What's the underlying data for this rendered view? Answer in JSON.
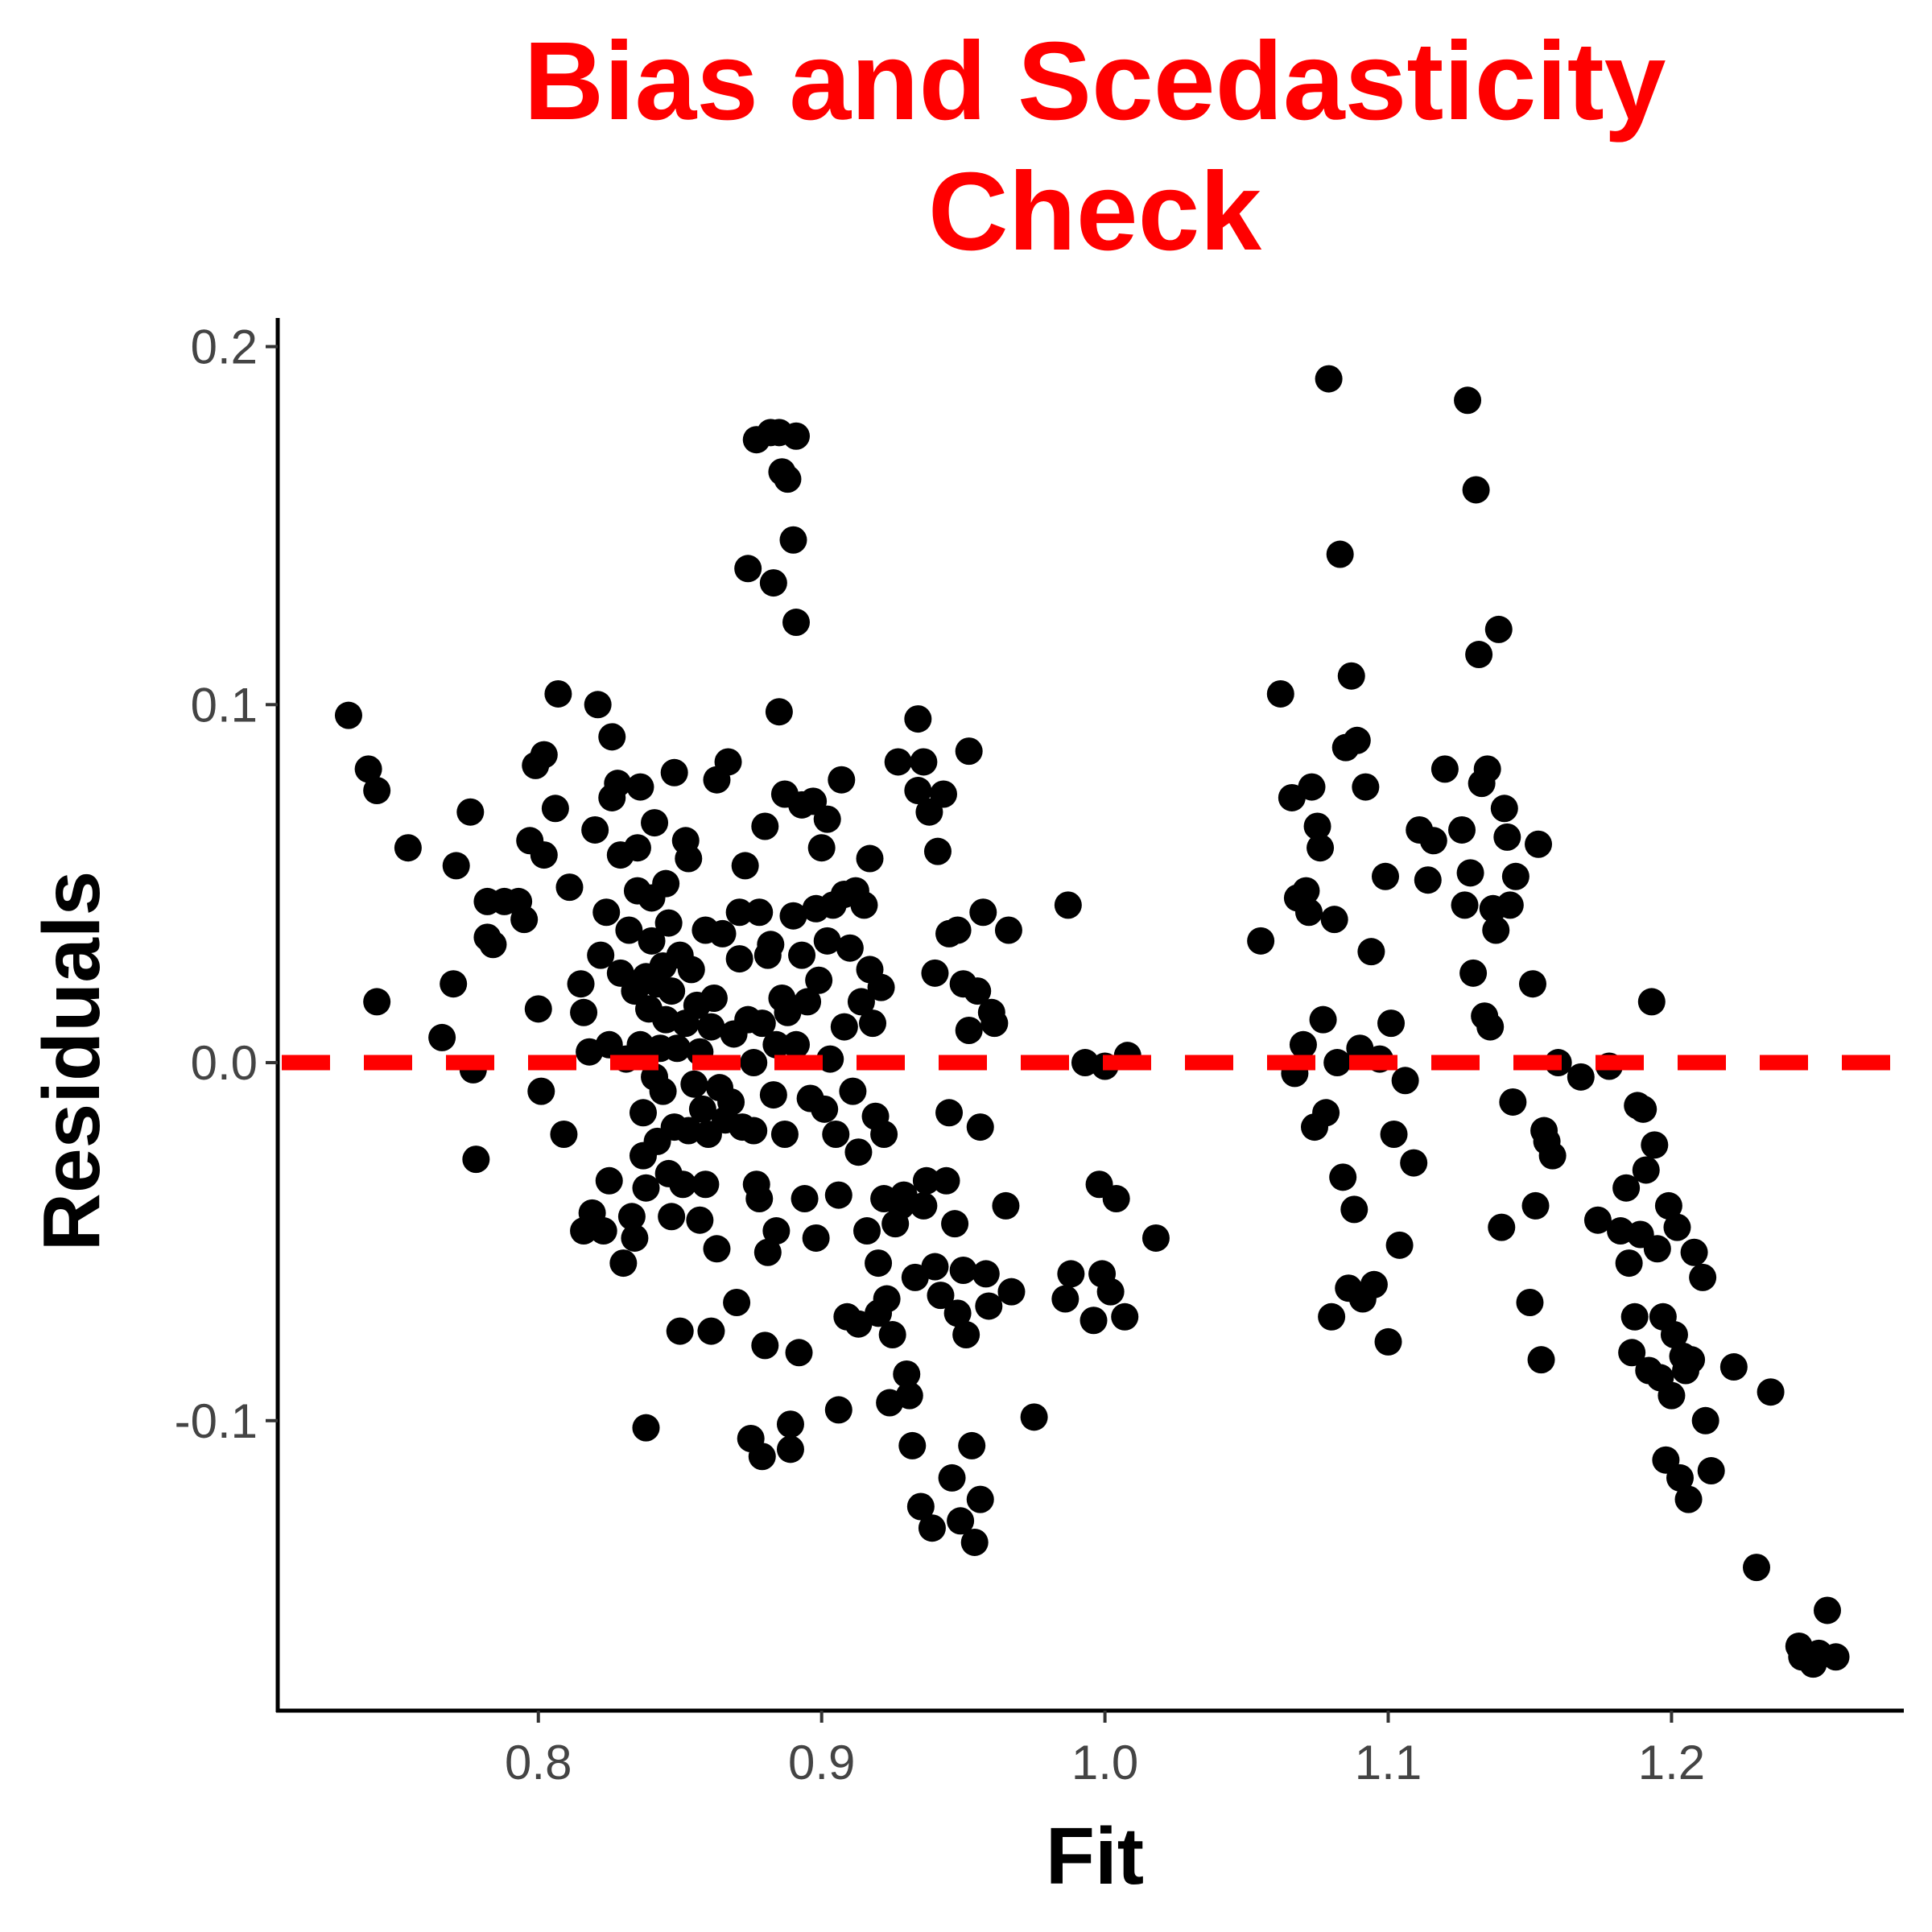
{
  "chart_data": {
    "type": "scatter",
    "title_lines": [
      "Bias and Scedasticity",
      "Check"
    ],
    "xlabel": "Fit",
    "ylabel": "Residuals",
    "xlim": [
      0.708,
      1.282
    ],
    "ylim": [
      -0.181,
      0.208
    ],
    "x_ticks": [
      0.8,
      0.9,
      1.0,
      1.1,
      1.2
    ],
    "x_tick_labels": [
      "0.8",
      "0.9",
      "1.0",
      "1.1",
      "1.2"
    ],
    "y_ticks": [
      -0.1,
      0.0,
      0.1,
      0.2
    ],
    "y_tick_labels": [
      "-0.1",
      "0.0",
      "0.1",
      "0.2"
    ],
    "reference_line": {
      "y": 0.0,
      "style": "dashed",
      "color": "#ff0000"
    },
    "grid": false,
    "legend": "none",
    "colors": {
      "title": "#ff0000",
      "points": "#000000",
      "reference": "#ff0000"
    },
    "points": [
      [
        0.733,
        0.097
      ],
      [
        0.74,
        0.082
      ],
      [
        0.743,
        0.076
      ],
      [
        0.743,
        0.017
      ],
      [
        0.754,
        0.06
      ],
      [
        0.766,
        0.007
      ],
      [
        0.77,
        0.022
      ],
      [
        0.771,
        0.055
      ],
      [
        0.776,
        0.07
      ],
      [
        0.777,
        -0.002
      ],
      [
        0.778,
        -0.027
      ],
      [
        0.782,
        0.045
      ],
      [
        0.782,
        0.035
      ],
      [
        0.784,
        0.033
      ],
      [
        0.788,
        0.045
      ],
      [
        0.793,
        0.045
      ],
      [
        0.795,
        0.04
      ],
      [
        0.797,
        0.062
      ],
      [
        0.799,
        0.083
      ],
      [
        0.8,
        0.015
      ],
      [
        0.801,
        -0.008
      ],
      [
        0.802,
        0.058
      ],
      [
        0.802,
        0.086
      ],
      [
        0.806,
        0.071
      ],
      [
        0.807,
        0.103
      ],
      [
        0.809,
        -0.02
      ],
      [
        0.811,
        0.049
      ],
      [
        0.815,
        0.022
      ],
      [
        0.816,
        0.014
      ],
      [
        0.816,
        -0.047
      ],
      [
        0.818,
        0.003
      ],
      [
        0.819,
        -0.042
      ],
      [
        0.82,
        0.065
      ],
      [
        0.821,
        0.1
      ],
      [
        0.822,
        0.03
      ],
      [
        0.823,
        -0.047
      ],
      [
        0.824,
        0.042
      ],
      [
        0.825,
        0.005
      ],
      [
        0.825,
        -0.033
      ],
      [
        0.826,
        0.091
      ],
      [
        0.826,
        0.074
      ],
      [
        0.828,
        0.078
      ],
      [
        0.829,
        0.058
      ],
      [
        0.829,
        0.025
      ],
      [
        0.83,
        -0.056
      ],
      [
        0.831,
        0.001
      ],
      [
        0.832,
        0.037
      ],
      [
        0.833,
        -0.043
      ],
      [
        0.834,
        0.02
      ],
      [
        0.834,
        -0.049
      ],
      [
        0.835,
        0.048
      ],
      [
        0.835,
        0.06
      ],
      [
        0.836,
        0.077
      ],
      [
        0.836,
        0.005
      ],
      [
        0.837,
        -0.026
      ],
      [
        0.837,
        -0.014
      ],
      [
        0.838,
        0.024
      ],
      [
        0.838,
        -0.035
      ],
      [
        0.838,
        -0.102
      ],
      [
        0.839,
        0.015
      ],
      [
        0.84,
        0.046
      ],
      [
        0.84,
        0.034
      ],
      [
        0.841,
        -0.004
      ],
      [
        0.841,
        0.067
      ],
      [
        0.842,
        0.022
      ],
      [
        0.842,
        -0.022
      ],
      [
        0.843,
        0.004
      ],
      [
        0.844,
        0.027
      ],
      [
        0.844,
        -0.008
      ],
      [
        0.845,
        0.05
      ],
      [
        0.845,
        0.012
      ],
      [
        0.846,
        0.039
      ],
      [
        0.846,
        -0.031
      ],
      [
        0.847,
        -0.043
      ],
      [
        0.847,
        0.02
      ],
      [
        0.848,
        -0.018
      ],
      [
        0.848,
        0.081
      ],
      [
        0.849,
        0.004
      ],
      [
        0.85,
        0.03
      ],
      [
        0.85,
        -0.075
      ],
      [
        0.851,
        -0.034
      ],
      [
        0.852,
        0.011
      ],
      [
        0.852,
        0.062
      ],
      [
        0.853,
        -0.019
      ],
      [
        0.853,
        0.057
      ],
      [
        0.854,
        0.026
      ],
      [
        0.855,
        -0.006
      ],
      [
        0.856,
        0.016
      ],
      [
        0.857,
        -0.044
      ],
      [
        0.857,
        0.003
      ],
      [
        0.858,
        -0.013
      ],
      [
        0.859,
        0.037
      ],
      [
        0.859,
        -0.034
      ],
      [
        0.86,
        -0.02
      ],
      [
        0.861,
        0.01
      ],
      [
        0.861,
        -0.075
      ],
      [
        0.862,
        0.018
      ],
      [
        0.863,
        -0.052
      ],
      [
        0.863,
        0.079
      ],
      [
        0.864,
        -0.007
      ],
      [
        0.865,
        0.036
      ],
      [
        0.866,
        -0.016
      ],
      [
        0.867,
        0.084
      ],
      [
        0.868,
        -0.011
      ],
      [
        0.869,
        0.008
      ],
      [
        0.87,
        -0.067
      ],
      [
        0.871,
        0.029
      ],
      [
        0.871,
        0.042
      ],
      [
        0.872,
        -0.018
      ],
      [
        0.873,
        0.055
      ],
      [
        0.874,
        0.138
      ],
      [
        0.874,
        0.012
      ],
      [
        0.875,
        -0.105
      ],
      [
        0.876,
        0.0
      ],
      [
        0.876,
        -0.019
      ],
      [
        0.877,
        -0.034
      ],
      [
        0.877,
        0.174
      ],
      [
        0.878,
        0.042
      ],
      [
        0.878,
        -0.038
      ],
      [
        0.879,
        -0.11
      ],
      [
        0.879,
        0.011
      ],
      [
        0.88,
        -0.079
      ],
      [
        0.88,
        0.066
      ],
      [
        0.881,
        0.03
      ],
      [
        0.881,
        -0.053
      ],
      [
        0.882,
        0.176
      ],
      [
        0.882,
        0.033
      ],
      [
        0.883,
        -0.009
      ],
      [
        0.883,
        0.134
      ],
      [
        0.884,
        0.005
      ],
      [
        0.884,
        -0.047
      ],
      [
        0.885,
        0.176
      ],
      [
        0.885,
        0.098
      ],
      [
        0.886,
        0.165
      ],
      [
        0.886,
        0.018
      ],
      [
        0.887,
        -0.02
      ],
      [
        0.887,
        0.075
      ],
      [
        0.888,
        0.163
      ],
      [
        0.888,
        0.014
      ],
      [
        0.889,
        -0.108
      ],
      [
        0.889,
        -0.101
      ],
      [
        0.89,
        0.146
      ],
      [
        0.89,
        0.041
      ],
      [
        0.891,
        0.123
      ],
      [
        0.891,
        0.005
      ],
      [
        0.891,
        0.175
      ],
      [
        0.892,
        -0.081
      ],
      [
        0.893,
        0.03
      ],
      [
        0.893,
        0.072
      ],
      [
        0.894,
        -0.038
      ],
      [
        0.895,
        0.017
      ],
      [
        0.896,
        -0.01
      ],
      [
        0.897,
        0.073
      ],
      [
        0.898,
        -0.049
      ],
      [
        0.898,
        0.043
      ],
      [
        0.899,
        0.023
      ],
      [
        0.9,
        0.06
      ],
      [
        0.901,
        -0.013
      ],
      [
        0.902,
        0.034
      ],
      [
        0.902,
        0.068
      ],
      [
        0.903,
        0.001
      ],
      [
        0.904,
        0.044
      ],
      [
        0.905,
        -0.02
      ],
      [
        0.906,
        -0.097
      ],
      [
        0.906,
        -0.037
      ],
      [
        0.907,
        0.079
      ],
      [
        0.908,
        0.047
      ],
      [
        0.908,
        0.01
      ],
      [
        0.909,
        -0.071
      ],
      [
        0.91,
        0.032
      ],
      [
        0.911,
        -0.008
      ],
      [
        0.912,
        0.048
      ],
      [
        0.913,
        -0.025
      ],
      [
        0.913,
        -0.073
      ],
      [
        0.914,
        0.017
      ],
      [
        0.915,
        0.044
      ],
      [
        0.916,
        -0.047
      ],
      [
        0.917,
        0.026
      ],
      [
        0.917,
        0.057
      ],
      [
        0.918,
        0.011
      ],
      [
        0.919,
        -0.015
      ],
      [
        0.92,
        -0.056
      ],
      [
        0.92,
        -0.07
      ],
      [
        0.921,
        0.021
      ],
      [
        0.922,
        -0.038
      ],
      [
        0.922,
        -0.02
      ],
      [
        0.923,
        -0.066
      ],
      [
        0.924,
        -0.095
      ],
      [
        0.925,
        -0.076
      ],
      [
        0.926,
        -0.045
      ],
      [
        0.927,
        0.084
      ],
      [
        0.928,
        -0.04
      ],
      [
        0.929,
        -0.037
      ],
      [
        0.93,
        -0.087
      ],
      [
        0.931,
        -0.093
      ],
      [
        0.932,
        -0.107
      ],
      [
        0.933,
        -0.06
      ],
      [
        0.934,
        0.076
      ],
      [
        0.934,
        0.096
      ],
      [
        0.935,
        -0.124
      ],
      [
        0.936,
        -0.04
      ],
      [
        0.936,
        0.084
      ],
      [
        0.937,
        -0.033
      ],
      [
        0.938,
        0.07
      ],
      [
        0.939,
        -0.13
      ],
      [
        0.94,
        0.025
      ],
      [
        0.94,
        -0.057
      ],
      [
        0.941,
        0.059
      ],
      [
        0.942,
        -0.065
      ],
      [
        0.943,
        0.075
      ],
      [
        0.944,
        -0.033
      ],
      [
        0.945,
        0.036
      ],
      [
        0.945,
        -0.014
      ],
      [
        0.946,
        -0.116
      ],
      [
        0.947,
        -0.045
      ],
      [
        0.948,
        0.037
      ],
      [
        0.948,
        -0.07
      ],
      [
        0.949,
        -0.128
      ],
      [
        0.95,
        -0.058
      ],
      [
        0.95,
        0.022
      ],
      [
        0.951,
        -0.076
      ],
      [
        0.952,
        0.009
      ],
      [
        0.952,
        0.087
      ],
      [
        0.953,
        -0.107
      ],
      [
        0.954,
        -0.134
      ],
      [
        0.955,
        0.02
      ],
      [
        0.956,
        -0.018
      ],
      [
        0.956,
        -0.122
      ],
      [
        0.957,
        0.042
      ],
      [
        0.958,
        -0.059
      ],
      [
        0.959,
        -0.068
      ],
      [
        0.96,
        0.014
      ],
      [
        0.961,
        0.011
      ],
      [
        0.965,
        -0.04
      ],
      [
        0.966,
        0.037
      ],
      [
        0.967,
        -0.064
      ],
      [
        0.975,
        -0.099
      ],
      [
        0.986,
        -0.066
      ],
      [
        0.987,
        0.044
      ],
      [
        0.988,
        -0.059
      ],
      [
        0.993,
        0.0
      ],
      [
        0.996,
        -0.072
      ],
      [
        0.998,
        -0.034
      ],
      [
        0.999,
        -0.059
      ],
      [
        1.0,
        -0.001
      ],
      [
        1.002,
        -0.064
      ],
      [
        1.004,
        -0.038
      ],
      [
        1.007,
        -0.071
      ],
      [
        1.008,
        0.002
      ],
      [
        1.018,
        -0.049
      ],
      [
        1.055,
        0.034
      ],
      [
        1.062,
        0.103
      ],
      [
        1.066,
        0.074
      ],
      [
        1.067,
        -0.003
      ],
      [
        1.068,
        0.046
      ],
      [
        1.07,
        0.005
      ],
      [
        1.071,
        0.048
      ],
      [
        1.072,
        0.042
      ],
      [
        1.073,
        0.077
      ],
      [
        1.074,
        -0.018
      ],
      [
        1.075,
        0.066
      ],
      [
        1.076,
        0.06
      ],
      [
        1.077,
        0.012
      ],
      [
        1.078,
        -0.014
      ],
      [
        1.079,
        0.191
      ],
      [
        1.08,
        -0.071
      ],
      [
        1.081,
        0.04
      ],
      [
        1.082,
        0.0
      ],
      [
        1.083,
        0.142
      ],
      [
        1.084,
        -0.032
      ],
      [
        1.085,
        0.088
      ],
      [
        1.086,
        -0.063
      ],
      [
        1.087,
        0.108
      ],
      [
        1.088,
        -0.041
      ],
      [
        1.089,
        0.09
      ],
      [
        1.09,
        0.004
      ],
      [
        1.091,
        -0.066
      ],
      [
        1.092,
        0.077
      ],
      [
        1.094,
        0.031
      ],
      [
        1.095,
        -0.062
      ],
      [
        1.097,
        0.001
      ],
      [
        1.099,
        0.052
      ],
      [
        1.1,
        -0.078
      ],
      [
        1.101,
        0.011
      ],
      [
        1.102,
        -0.02
      ],
      [
        1.104,
        -0.051
      ],
      [
        1.106,
        -0.005
      ],
      [
        1.109,
        -0.028
      ],
      [
        1.111,
        0.065
      ],
      [
        1.114,
        0.051
      ],
      [
        1.116,
        0.062
      ],
      [
        1.12,
        0.082
      ],
      [
        1.126,
        0.065
      ],
      [
        1.127,
        0.044
      ],
      [
        1.128,
        0.185
      ],
      [
        1.129,
        0.053
      ],
      [
        1.13,
        0.025
      ],
      [
        1.131,
        0.16
      ],
      [
        1.132,
        0.114
      ],
      [
        1.133,
        0.078
      ],
      [
        1.134,
        0.013
      ],
      [
        1.135,
        0.082
      ],
      [
        1.136,
        0.01
      ],
      [
        1.137,
        0.043
      ],
      [
        1.138,
        0.037
      ],
      [
        1.139,
        0.121
      ],
      [
        1.14,
        -0.046
      ],
      [
        1.141,
        0.071
      ],
      [
        1.142,
        0.063
      ],
      [
        1.143,
        0.044
      ],
      [
        1.144,
        -0.011
      ],
      [
        1.145,
        0.052
      ],
      [
        1.15,
        -0.067
      ],
      [
        1.151,
        0.022
      ],
      [
        1.152,
        -0.04
      ],
      [
        1.153,
        0.061
      ],
      [
        1.154,
        -0.083
      ],
      [
        1.155,
        -0.019
      ],
      [
        1.156,
        -0.022
      ],
      [
        1.158,
        -0.026
      ],
      [
        1.16,
        0.0
      ],
      [
        1.168,
        -0.004
      ],
      [
        1.174,
        -0.044
      ],
      [
        1.178,
        -0.001
      ],
      [
        1.182,
        -0.047
      ],
      [
        1.184,
        -0.035
      ],
      [
        1.185,
        -0.056
      ],
      [
        1.186,
        -0.081
      ],
      [
        1.187,
        -0.071
      ],
      [
        1.188,
        -0.012
      ],
      [
        1.189,
        -0.048
      ],
      [
        1.19,
        -0.013
      ],
      [
        1.191,
        -0.03
      ],
      [
        1.192,
        -0.086
      ],
      [
        1.193,
        0.017
      ],
      [
        1.194,
        -0.023
      ],
      [
        1.195,
        -0.052
      ],
      [
        1.196,
        -0.088
      ],
      [
        1.197,
        -0.071
      ],
      [
        1.198,
        -0.111
      ],
      [
        1.199,
        -0.04
      ],
      [
        1.2,
        -0.093
      ],
      [
        1.201,
        -0.076
      ],
      [
        1.202,
        -0.046
      ],
      [
        1.203,
        -0.116
      ],
      [
        1.204,
        -0.082
      ],
      [
        1.205,
        -0.086
      ],
      [
        1.206,
        -0.122
      ],
      [
        1.207,
        -0.083
      ],
      [
        1.208,
        -0.053
      ],
      [
        1.211,
        -0.06
      ],
      [
        1.212,
        -0.1
      ],
      [
        1.214,
        -0.114
      ],
      [
        1.222,
        -0.085
      ],
      [
        1.23,
        -0.141
      ],
      [
        1.235,
        -0.092
      ],
      [
        1.245,
        -0.163
      ],
      [
        1.246,
        -0.166
      ],
      [
        1.25,
        -0.168
      ],
      [
        1.252,
        -0.165
      ],
      [
        1.255,
        -0.153
      ],
      [
        1.258,
        -0.166
      ]
    ]
  }
}
